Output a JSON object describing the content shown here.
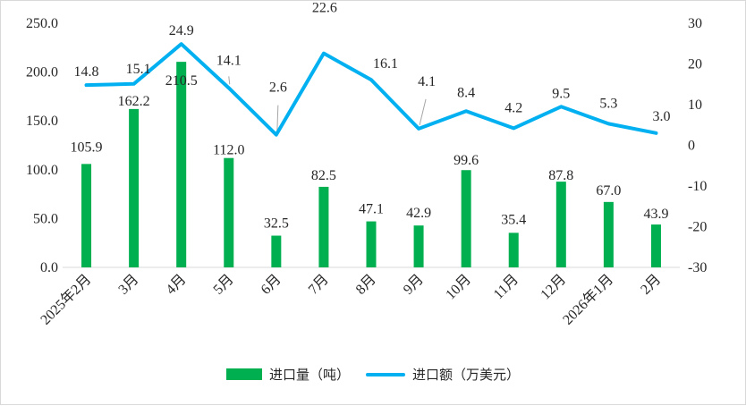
{
  "chart_data": {
    "type": "bar+line",
    "categories": [
      "2025年2月",
      "3月",
      "4月",
      "5月",
      "6月",
      "7月",
      "8月",
      "9月",
      "10月",
      "11月",
      "12月",
      "2026年1月",
      "2月"
    ],
    "series": [
      {
        "name": "进口量（吨）",
        "type": "bar",
        "axis": "left",
        "color": "#00b050",
        "values": [
          105.9,
          162.2,
          210.5,
          112.0,
          32.5,
          82.5,
          47.1,
          42.9,
          99.6,
          35.4,
          87.8,
          67.0,
          43.9
        ],
        "labels": [
          "105.9",
          "162.2",
          "210.5",
          "112.0",
          "32.5",
          "82.5",
          "47.1",
          "42.9",
          "99.6",
          "35.4",
          "87.8",
          "67.0",
          "43.9"
        ]
      },
      {
        "name": "进口额（万美元）",
        "type": "line",
        "axis": "right",
        "color": "#00b0f0",
        "values": [
          14.8,
          15.1,
          24.9,
          14.1,
          2.6,
          22.6,
          16.1,
          4.1,
          8.4,
          4.2,
          9.5,
          5.3,
          3.0
        ],
        "labels": [
          "14.8",
          "15.1",
          "24.9",
          "14.1",
          "2.6",
          "22.6",
          "16.1",
          "4.1",
          "8.4",
          "4.2",
          "9.5",
          "5.3",
          "3.0"
        ]
      }
    ],
    "left_axis": {
      "ylim": [
        0,
        250
      ],
      "ticks": [
        "0.0",
        "50.0",
        "100.0",
        "150.0",
        "200.0",
        "250.0"
      ]
    },
    "right_axis": {
      "ylim": [
        -30,
        30
      ],
      "ticks": [
        "-30",
        "-20",
        "-10",
        "0",
        "10",
        "20",
        "30"
      ]
    },
    "legend_position": "bottom"
  }
}
